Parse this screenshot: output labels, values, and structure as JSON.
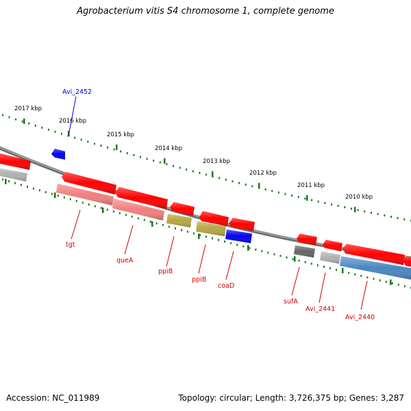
{
  "title": "Agrobacterium vitis S4 chromosome 1, complete genome",
  "accession_label": "Accession: NC_011989",
  "summary_label": "Topology: circular; Length: 3,726,375 bp; Genes: 3,287",
  "colors": {
    "backbone": "#808080",
    "tick": "#1a7a1a",
    "gene_red": "#ff0000",
    "gene_pink": "#f08080",
    "gene_olive": "#b5a642",
    "gene_blue": "#0000ee",
    "gene_grey": "#b0b0b0",
    "gene_darkgrey": "#666666",
    "gene_steelblue": "#4a86c0",
    "label_red": "#cc0000",
    "label_blue": "#0000cc"
  },
  "kbp_labels": [
    "2017 kbp",
    "2016 kbp",
    "2015 kbp",
    "2014 kbp",
    "2013 kbp",
    "2012 kbp",
    "2011 kbp",
    "2010 kbp"
  ],
  "gene_labels": [
    {
      "text": "Avi_2452",
      "color": "label_blue"
    },
    {
      "text": "tgt",
      "color": "label_red"
    },
    {
      "text": "queA",
      "color": "label_red"
    },
    {
      "text": "ppiB",
      "color": "label_red"
    },
    {
      "text": "ppiB",
      "color": "label_red"
    },
    {
      "text": "coaD",
      "color": "label_red"
    },
    {
      "text": "sufA",
      "color": "label_red"
    },
    {
      "text": "Avi_2441",
      "color": "label_red"
    },
    {
      "text": "Avi_2440",
      "color": "label_red"
    }
  ]
}
